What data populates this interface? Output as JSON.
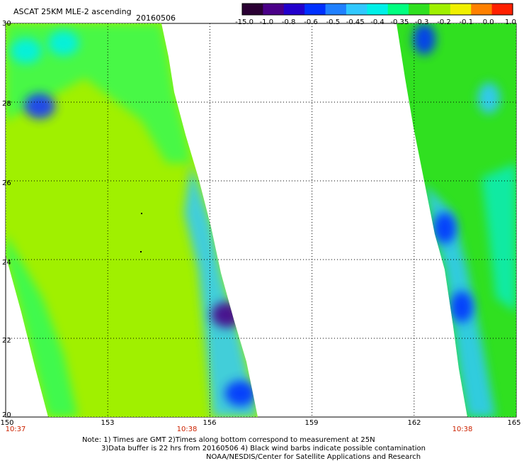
{
  "header": {
    "title": "ASCAT 25KM MLE-2 ascending",
    "date": "20160506"
  },
  "colorbar": {
    "labels": [
      "-15.0",
      "-1.0",
      "-0.8",
      "-0.6",
      "-0.5",
      "-0.45",
      "-0.4",
      "-0.35",
      "-0.3",
      "-0.2",
      "-0.1",
      "0.0",
      "1.0"
    ],
    "colors": [
      "#2a0033",
      "#4a0088",
      "#2200cc",
      "#0030ff",
      "#2080ff",
      "#30c8ff",
      "#00f0e8",
      "#00ff80",
      "#30e020",
      "#a0f000",
      "#f0f000",
      "#ff8000",
      "#ff2000"
    ]
  },
  "map": {
    "lat_labels": [
      "30",
      "28",
      "26",
      "24",
      "22",
      "20"
    ],
    "lon_labels": [
      "150",
      "153",
      "156",
      "159",
      "162",
      "165"
    ],
    "time_labels": [
      "10:37",
      "10:38",
      "10:38"
    ],
    "lat_range": [
      20,
      30
    ],
    "lon_range": [
      150,
      165
    ],
    "grid": true,
    "grid_step_deg": 2,
    "lon_grid_step_deg": 3
  },
  "swaths": {
    "west": {
      "name": "west-swath",
      "base_color": "#a0f000",
      "edge_color": "#00ff80",
      "patches": [
        {
          "lon": 151,
          "lat": 27.9,
          "value": "-0.6",
          "color": "#1838ff"
        },
        {
          "lon": 150.6,
          "lat": 29.3,
          "value": "-0.4",
          "color": "#00f0e8"
        },
        {
          "lon": 151.7,
          "lat": 29.5,
          "value": "-0.4",
          "color": "#00f0e8"
        },
        {
          "lon": 156.5,
          "lat": 22.6,
          "value": "-1.0",
          "color": "#4a0088"
        },
        {
          "lon": 156.9,
          "lat": 20.6,
          "value": "-0.6",
          "color": "#0030ff"
        }
      ]
    },
    "east": {
      "name": "east-swath",
      "base_color": "#30e020",
      "patches": [
        {
          "lon": 162.3,
          "lat": 29.6,
          "value": "-0.6",
          "color": "#0030ff"
        },
        {
          "lon": 162.9,
          "lat": 24.8,
          "value": "-0.6",
          "color": "#0030ff"
        },
        {
          "lon": 163.4,
          "lat": 22.8,
          "value": "-0.6",
          "color": "#0030ff"
        },
        {
          "lon": 164.2,
          "lat": 28.1,
          "value": "-0.45",
          "color": "#30c8ff"
        }
      ]
    }
  },
  "notes": {
    "line1": "Note: 1) Times are GMT 2)Times along bottom correspond to measurement at 25N",
    "line2": "3)Data buffer is 22 hrs from 20160506 4) Black wind barbs indicate possible contamination",
    "line3": "NOAA/NESDIS/Center for Satellite Applications and Research"
  }
}
